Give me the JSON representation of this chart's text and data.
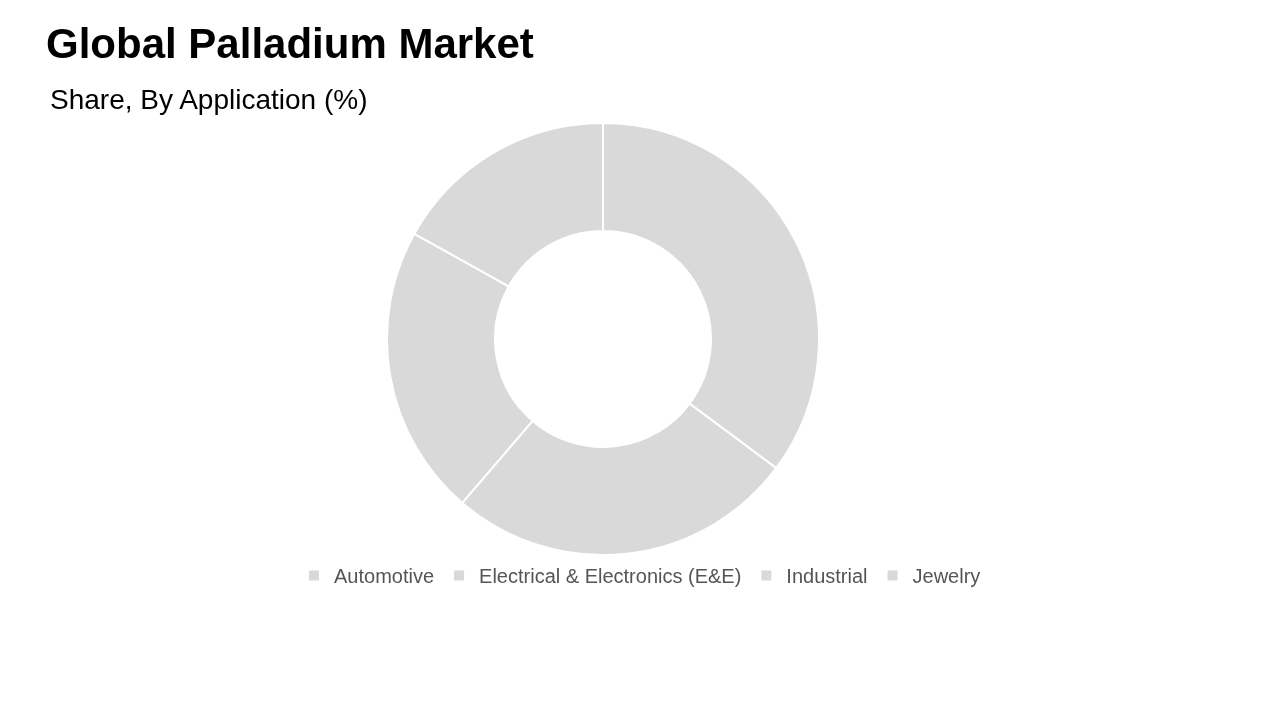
{
  "chart_data": {
    "type": "donut",
    "title": "Global Palladium Market",
    "subtitle": "Share, By Application (%)",
    "categories": [
      "Automotive",
      "Electrical & Electronics (E&E)",
      "Industrial",
      "Jewelry"
    ],
    "values": [
      35.2,
      26.1,
      21.8,
      16.9
    ],
    "colors": [
      "#d9d9d9",
      "#d9d9d9",
      "#d9d9d9",
      "#d9d9d9"
    ],
    "legend": "bottom"
  }
}
